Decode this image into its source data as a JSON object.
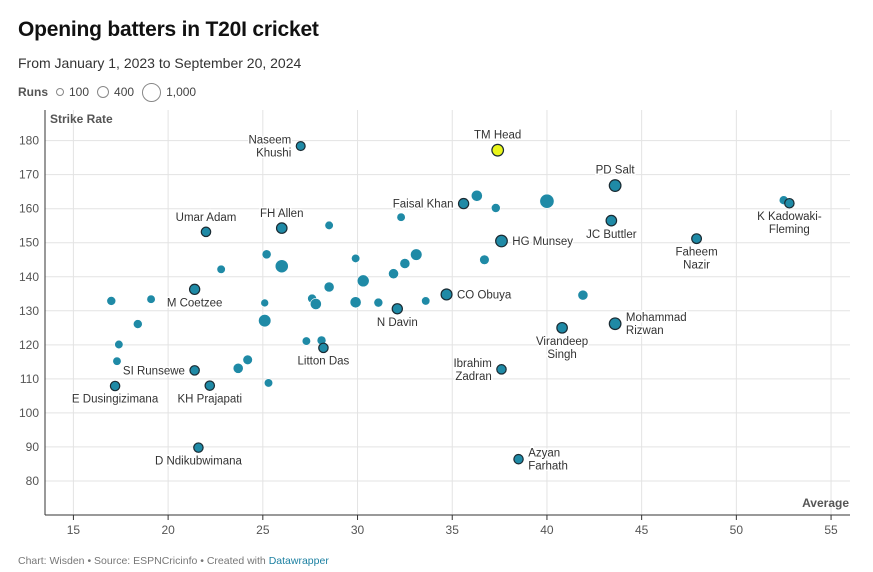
{
  "header": {
    "title": "Opening batters in T20I cricket",
    "subtitle": "From January 1, 2023 to September 20, 2024"
  },
  "legend": {
    "label": "Runs",
    "items": [
      {
        "label": "100",
        "runs": 100
      },
      {
        "label": "400",
        "runs": 400
      },
      {
        "label": "1,000",
        "runs": 1000
      }
    ]
  },
  "footer": {
    "text": "Chart: Wisden • Source: ESPNCricinfo • Created with ",
    "link": "Datawrapper"
  },
  "colors": {
    "point": "#1f8aa6",
    "highlight": "#e9f51a",
    "outline": "#1a2b33",
    "grid": "#e3e3e3",
    "axis": "#333333"
  },
  "chart_data": {
    "type": "scatter",
    "xlabel": "Average",
    "ylabel": "Strike Rate",
    "xlim": [
      13.5,
      56
    ],
    "ylim": [
      70,
      189
    ],
    "xticks": [
      15,
      20,
      25,
      30,
      35,
      40,
      45,
      50,
      55
    ],
    "yticks": [
      80,
      90,
      100,
      110,
      120,
      130,
      140,
      150,
      160,
      170,
      180
    ],
    "grid": true,
    "points": [
      {
        "x": 37.4,
        "y": 177.2,
        "runs": 430,
        "label": "TM Head",
        "label_pos": "top",
        "highlight": true
      },
      {
        "x": 27.0,
        "y": 178.4,
        "runs": 250,
        "label": "Naseem Khushi",
        "label_pos": "left",
        "outlined": true
      },
      {
        "x": 43.6,
        "y": 166.8,
        "runs": 430,
        "label": "PD Salt",
        "label_pos": "top",
        "outlined": true
      },
      {
        "x": 35.6,
        "y": 161.5,
        "runs": 330,
        "label": "Faisal Khan",
        "label_pos": "left",
        "outlined": true
      },
      {
        "x": 43.4,
        "y": 156.5,
        "runs": 350,
        "label": "JC Buttler",
        "label_pos": "bottom",
        "outlined": true
      },
      {
        "x": 52.8,
        "y": 161.6,
        "runs": 280,
        "label": "K Kadowaki-Fleming",
        "label_pos": "bottom",
        "outlined": true
      },
      {
        "x": 22.0,
        "y": 153.2,
        "runs": 280,
        "label": "Umar Adam",
        "label_pos": "top",
        "outlined": true
      },
      {
        "x": 26.0,
        "y": 154.3,
        "runs": 350,
        "label": "FH Allen",
        "label_pos": "top",
        "outlined": true
      },
      {
        "x": 37.6,
        "y": 150.5,
        "runs": 430,
        "label": "HG Munsey",
        "label_pos": "right",
        "outlined": true
      },
      {
        "x": 47.9,
        "y": 151.2,
        "runs": 300,
        "label": "Faheem Nazir",
        "label_pos": "bottom",
        "outlined": true
      },
      {
        "x": 21.4,
        "y": 136.3,
        "runs": 330,
        "label": "M Coetzee",
        "label_pos": "bottom",
        "outlined": true
      },
      {
        "x": 34.7,
        "y": 134.8,
        "runs": 380,
        "label": "CO Obuya",
        "label_pos": "right",
        "outlined": true
      },
      {
        "x": 32.1,
        "y": 130.6,
        "runs": 330,
        "label": "N Davin",
        "label_pos": "bottom",
        "outlined": true
      },
      {
        "x": 43.6,
        "y": 126.2,
        "runs": 430,
        "label": "Mohammad Rizwan",
        "label_pos": "right",
        "outlined": true
      },
      {
        "x": 40.8,
        "y": 125.0,
        "runs": 350,
        "label": "Virandeep Singh",
        "label_pos": "bottom",
        "outlined": true
      },
      {
        "x": 28.2,
        "y": 119.1,
        "runs": 280,
        "label": "Litton Das",
        "label_pos": "bottom",
        "outlined": true
      },
      {
        "x": 21.4,
        "y": 112.5,
        "runs": 280,
        "label": "SI Runsewe",
        "label_pos": "left",
        "outlined": true
      },
      {
        "x": 37.6,
        "y": 112.8,
        "runs": 280,
        "label": "Ibrahim Zadran",
        "label_pos": "left",
        "outlined": true
      },
      {
        "x": 17.2,
        "y": 107.9,
        "runs": 280,
        "label": "E Dusingizimana",
        "label_pos": "bottom",
        "outlined": true
      },
      {
        "x": 22.2,
        "y": 108.0,
        "runs": 280,
        "label": "KH Prajapati",
        "label_pos": "bottom",
        "outlined": true
      },
      {
        "x": 21.6,
        "y": 89.8,
        "runs": 280,
        "label": "D Ndikubwimana",
        "label_pos": "bottom",
        "outlined": true
      },
      {
        "x": 38.5,
        "y": 86.4,
        "runs": 280,
        "label": "Azyan Farhath",
        "label_pos": "right",
        "outlined": true
      },
      {
        "x": 40.0,
        "y": 162.2,
        "runs": 650
      },
      {
        "x": 36.3,
        "y": 163.8,
        "runs": 400
      },
      {
        "x": 37.3,
        "y": 160.2,
        "runs": 260
      },
      {
        "x": 32.3,
        "y": 157.5,
        "runs": 230
      },
      {
        "x": 52.5,
        "y": 162.5,
        "runs": 260
      },
      {
        "x": 28.5,
        "y": 155.1,
        "runs": 230
      },
      {
        "x": 29.9,
        "y": 145.4,
        "runs": 230
      },
      {
        "x": 25.2,
        "y": 146.6,
        "runs": 270
      },
      {
        "x": 26.0,
        "y": 143.1,
        "runs": 550
      },
      {
        "x": 22.8,
        "y": 142.2,
        "runs": 230
      },
      {
        "x": 33.1,
        "y": 146.5,
        "runs": 430
      },
      {
        "x": 32.5,
        "y": 143.9,
        "runs": 330
      },
      {
        "x": 36.7,
        "y": 145.0,
        "runs": 300
      },
      {
        "x": 31.9,
        "y": 140.9,
        "runs": 330
      },
      {
        "x": 30.3,
        "y": 138.8,
        "runs": 460
      },
      {
        "x": 28.5,
        "y": 137.0,
        "runs": 330
      },
      {
        "x": 27.6,
        "y": 133.6,
        "runs": 260
      },
      {
        "x": 27.8,
        "y": 132.0,
        "runs": 400
      },
      {
        "x": 29.9,
        "y": 132.5,
        "runs": 400
      },
      {
        "x": 31.1,
        "y": 132.4,
        "runs": 260
      },
      {
        "x": 33.6,
        "y": 132.9,
        "runs": 230
      },
      {
        "x": 19.1,
        "y": 133.4,
        "runs": 230
      },
      {
        "x": 17.0,
        "y": 132.9,
        "runs": 260
      },
      {
        "x": 25.1,
        "y": 132.3,
        "runs": 200
      },
      {
        "x": 25.1,
        "y": 127.1,
        "runs": 500
      },
      {
        "x": 18.4,
        "y": 126.1,
        "runs": 260
      },
      {
        "x": 41.9,
        "y": 134.6,
        "runs": 330
      },
      {
        "x": 27.3,
        "y": 121.1,
        "runs": 230
      },
      {
        "x": 28.1,
        "y": 121.3,
        "runs": 260
      },
      {
        "x": 17.4,
        "y": 120.1,
        "runs": 230
      },
      {
        "x": 17.3,
        "y": 115.2,
        "runs": 230
      },
      {
        "x": 24.2,
        "y": 115.6,
        "runs": 300
      },
      {
        "x": 23.7,
        "y": 113.1,
        "runs": 330
      },
      {
        "x": 25.3,
        "y": 108.8,
        "runs": 230
      }
    ]
  }
}
